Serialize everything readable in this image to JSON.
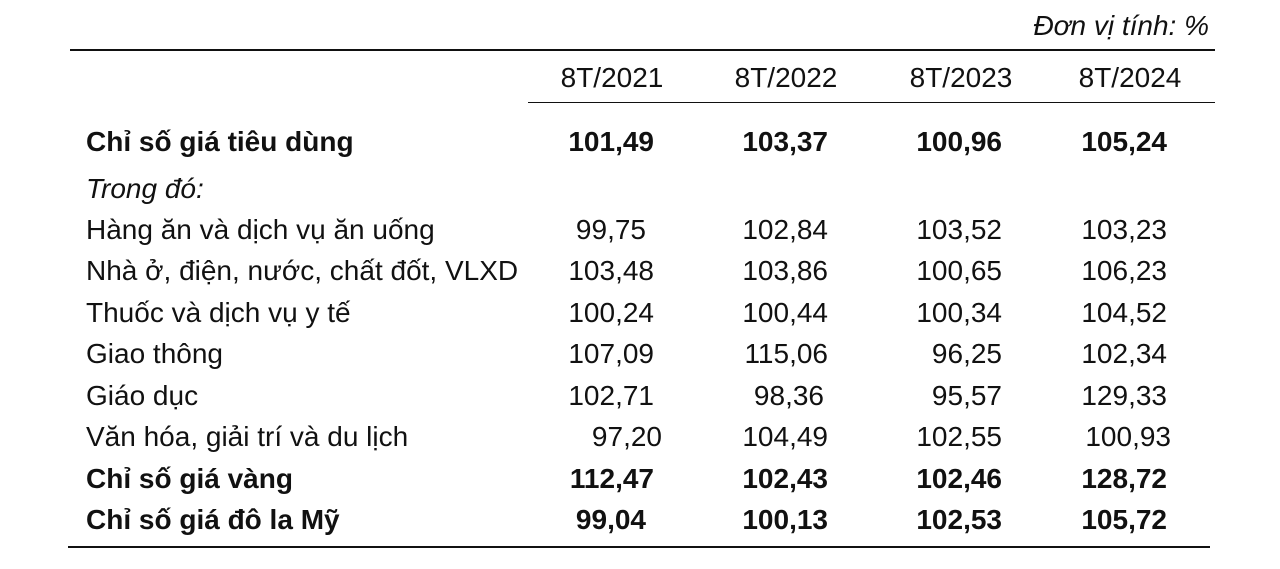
{
  "unit_note": "Đơn vị tính: %",
  "columns": [
    "8T/2021",
    "8T/2022",
    "8T/2023",
    "8T/2024"
  ],
  "rows": [
    {
      "label": "Chỉ số giá tiêu dùng",
      "values": [
        "101,49",
        "103,37",
        "100,96",
        "105,24"
      ],
      "bold": true
    },
    {
      "label": "Trong đó:",
      "values": [
        "",
        "",
        "",
        ""
      ],
      "italic": true
    },
    {
      "label": "Hàng ăn và dịch vụ ăn uống",
      "values": [
        "99,75",
        "102,84",
        "103,52",
        "103,23"
      ]
    },
    {
      "label": "Nhà ở, điện, nước, chất đốt, VLXD",
      "values": [
        "103,48",
        "103,86",
        "100,65",
        "106,23"
      ]
    },
    {
      "label": "Thuốc và dịch vụ y tế",
      "values": [
        "100,24",
        "100,44",
        "100,34",
        "104,52"
      ]
    },
    {
      "label": "Giao thông",
      "values": [
        "107,09",
        "115,06",
        "96,25",
        "102,34"
      ]
    },
    {
      "label": "Giáo dục",
      "values": [
        "102,71",
        "98,36",
        "95,57",
        "129,33"
      ]
    },
    {
      "label": "Văn hóa, giải trí và du lịch",
      "values": [
        "97,20",
        "104,49",
        "102,55",
        "100,93"
      ]
    },
    {
      "label": "Chỉ số giá vàng",
      "values": [
        "112,47",
        "102,43",
        "102,46",
        "128,72"
      ],
      "bold": true
    },
    {
      "label": "Chỉ số giá đô la Mỹ",
      "values": [
        "99,04",
        "100,13",
        "102,53",
        "105,72"
      ],
      "bold": true
    }
  ]
}
